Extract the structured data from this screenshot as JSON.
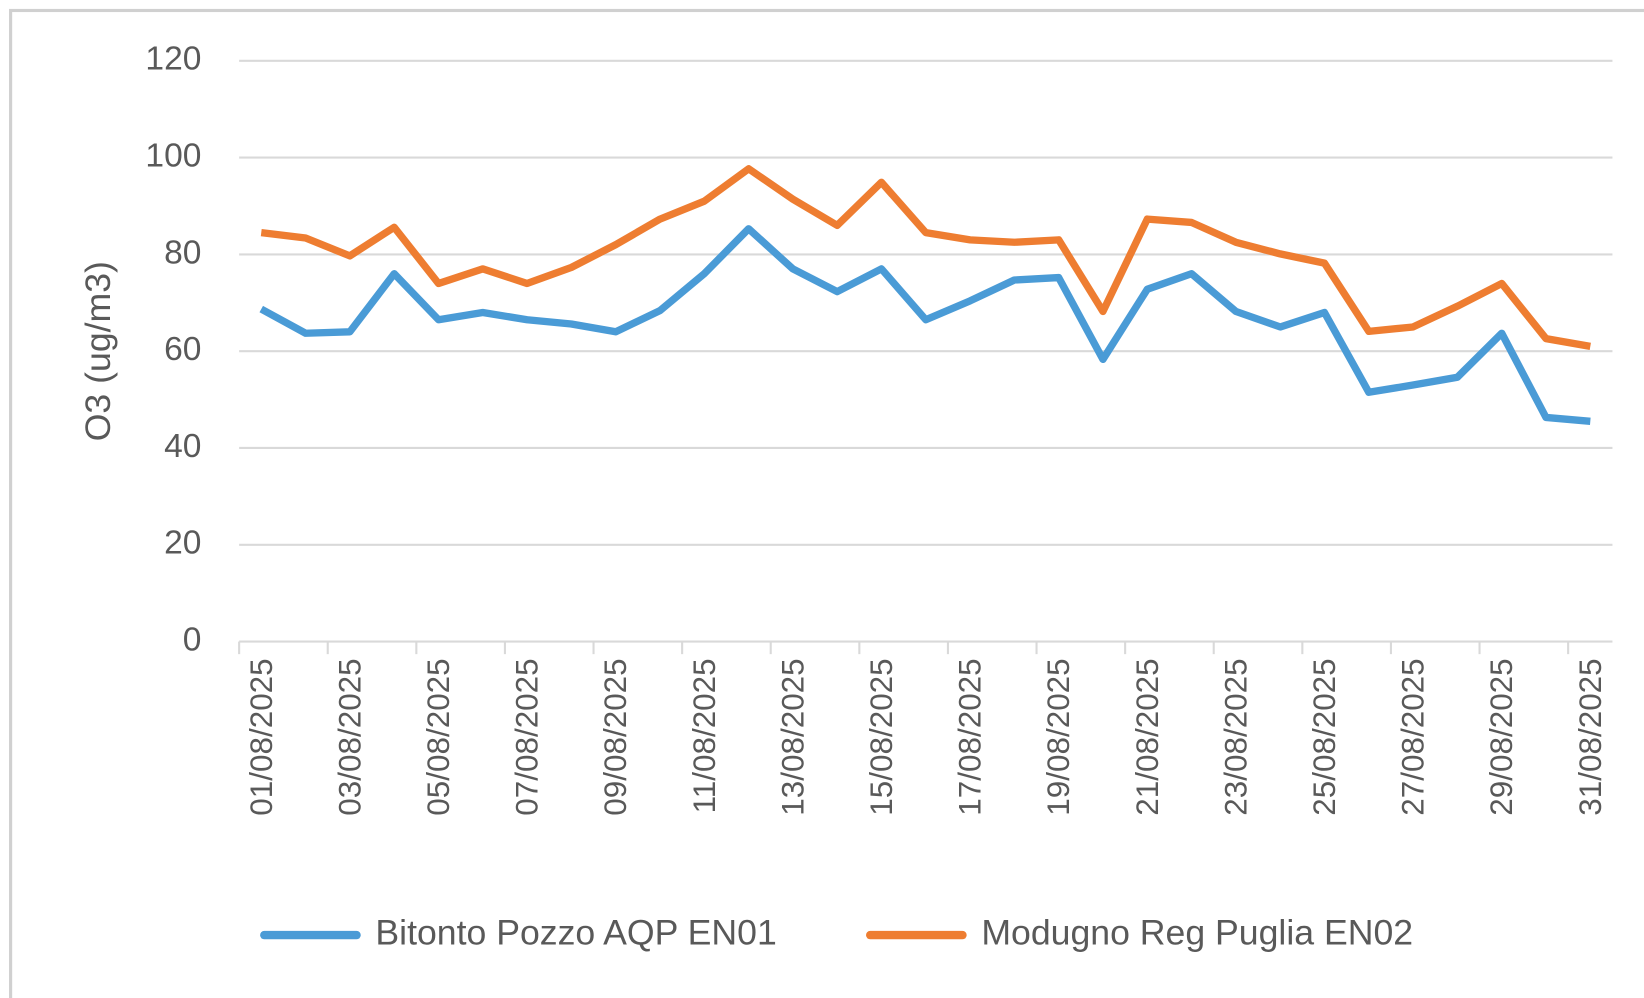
{
  "chart_data": {
    "type": "line",
    "ylabel": "O3 (ug/m3)",
    "categories": [
      "01/08/2025",
      null,
      "03/08/2025",
      null,
      "05/08/2025",
      null,
      "07/08/2025",
      null,
      "09/08/2025",
      null,
      "11/08/2025",
      null,
      "13/08/2025",
      null,
      "15/08/2025",
      null,
      "17/08/2025",
      null,
      "19/08/2025",
      null,
      "21/08/2025",
      null,
      "23/08/2025",
      null,
      "25/08/2025",
      null,
      "27/08/2025",
      null,
      "29/08/2025",
      null,
      "31/08/2025"
    ],
    "series": [
      {
        "name": "Bitonto Pozzo AQP EN01",
        "color": "#4a9bd6",
        "values": [
          68.7,
          63.7,
          64,
          76,
          66.5,
          68,
          66.5,
          65.6,
          64,
          68.4,
          76,
          85.3,
          77,
          72.3,
          77,
          66.5,
          70.4,
          74.7,
          75.2,
          58.3,
          72.8,
          76,
          68.2,
          65,
          68,
          51.5,
          53,
          54.6,
          63.7,
          46.3,
          45.5
        ]
      },
      {
        "name": "Modugno Reg Puglia EN02",
        "color": "#ee7d31",
        "values": [
          84.5,
          83.4,
          79.7,
          85.6,
          74,
          77,
          74,
          77.3,
          82,
          87.3,
          91,
          97.7,
          91.4,
          86,
          94.9,
          84.5,
          83,
          82.5,
          83,
          68.2,
          87.3,
          86.6,
          82.5,
          80.1,
          78.2,
          64.1,
          65,
          69.3,
          74,
          62.6,
          61
        ]
      }
    ],
    "ylim": [
      0,
      120
    ],
    "yticks": [
      0,
      20,
      40,
      60,
      80,
      100,
      120
    ],
    "grid": true,
    "legend": "bottom"
  }
}
